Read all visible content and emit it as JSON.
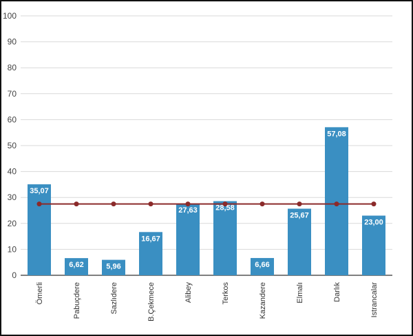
{
  "chart_data": {
    "type": "bar",
    "categories": [
      "Ömerli",
      "Pabuçdere",
      "Sazlıdere",
      "B.Çekmece",
      "Alibey",
      "Terkos",
      "Kazandere",
      "Elmalı",
      "Darlık",
      "Istrancalar"
    ],
    "values": [
      35.07,
      6.62,
      5.96,
      16.67,
      27.63,
      28.58,
      6.66,
      25.67,
      57.08,
      23.0
    ],
    "data_labels": [
      "35,07",
      "6,62",
      "5,96",
      "16,67",
      "27,63",
      "28,58",
      "6,66",
      "25,67",
      "57,08",
      "23,00"
    ],
    "overlay_line": {
      "type": "line",
      "values": [
        27.5,
        27.5,
        27.5,
        27.5,
        27.5,
        27.5,
        27.5,
        27.5,
        27.5,
        27.5
      ]
    },
    "yticks": [
      "0",
      "10",
      "20",
      "30",
      "40",
      "50",
      "60",
      "70",
      "80",
      "90",
      "100"
    ],
    "ylim": [
      0,
      100
    ],
    "grid": true,
    "title": "",
    "xlabel": "",
    "ylabel": "",
    "colors": {
      "bar": "#3a8fc2",
      "line": "#8b2a2a",
      "grid": "#d9d9d9",
      "axis": "#555555"
    }
  }
}
